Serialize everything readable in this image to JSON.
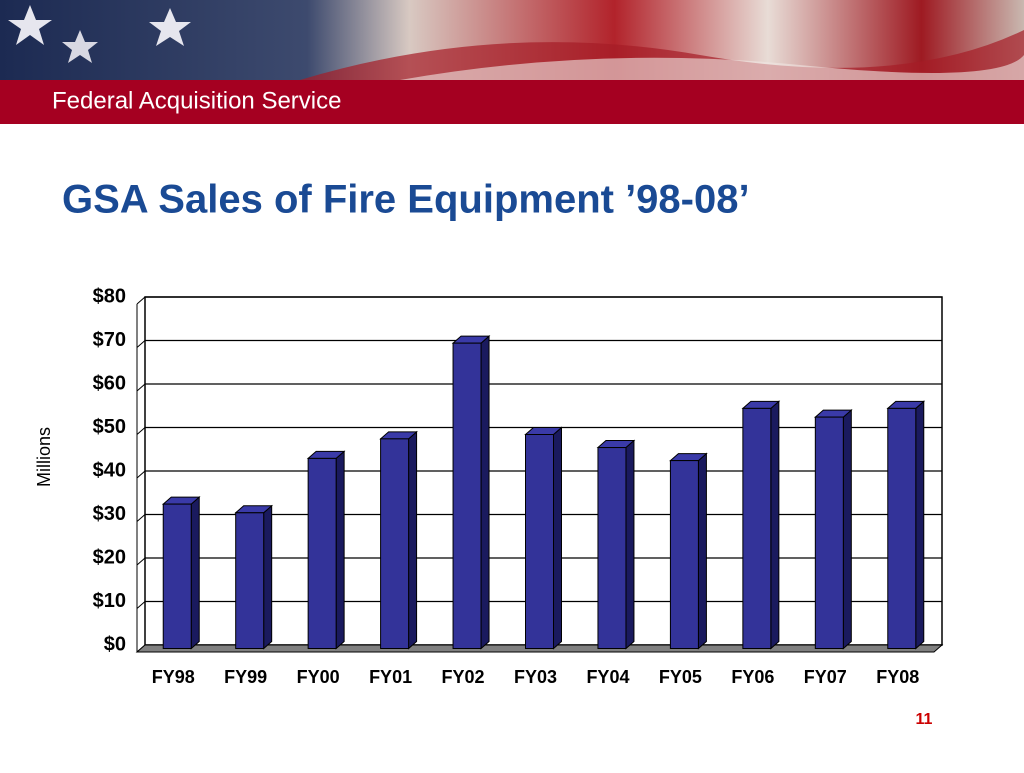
{
  "header": {
    "title": "Federal Acquisition Service"
  },
  "chart_data": {
    "type": "bar",
    "title": "GSA Sales of Fire Equipment ’98-08’",
    "y_label": "Millions",
    "categories": [
      "FY98",
      "FY99",
      "FY00",
      "FY01",
      "FY02",
      "FY03",
      "FY04",
      "FY05",
      "FY06",
      "FY07",
      "FY08"
    ],
    "values": [
      34,
      32,
      44.5,
      49,
      71,
      50,
      47,
      44,
      56,
      54,
      56
    ],
    "color": "#333399",
    "ylim": [
      0,
      80
    ],
    "yticks": [
      {
        "value": 0,
        "label": "$0"
      },
      {
        "value": 10,
        "label": "$10"
      },
      {
        "value": 20,
        "label": "$20"
      },
      {
        "value": 30,
        "label": "$30"
      },
      {
        "value": 40,
        "label": "$40"
      },
      {
        "value": 50,
        "label": "$50"
      },
      {
        "value": 60,
        "label": "$60"
      },
      {
        "value": 70,
        "label": "$70"
      },
      {
        "value": 80,
        "label": "$80"
      }
    ],
    "grid": true
  },
  "footer": {
    "page_number": "11"
  }
}
